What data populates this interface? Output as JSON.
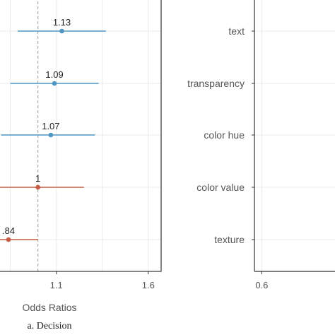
{
  "chart_data": [
    {
      "type": "scatter",
      "subtype": "forest-plot",
      "title": "",
      "xlabel": "Odds Ratios",
      "ylabel": "",
      "caption": "a. Decision",
      "xlim": [
        0.64,
        1.67
      ],
      "x_ticks": [
        1.1,
        1.6
      ],
      "x_tick_labels": [
        "1.1",
        "1.6"
      ],
      "reference_line": 1.0,
      "grid": true,
      "categories": [
        "text",
        "transparency",
        "color hue",
        "color value",
        "texture"
      ],
      "series": [
        {
          "values": [
            {
              "category": "text",
              "estimate": 1.13,
              "label": "1.13",
              "ci": [
                0.89,
                1.37
              ],
              "color": "#4f95c2"
            },
            {
              "category": "transparency",
              "estimate": 1.09,
              "label": "1.09",
              "ci": [
                0.85,
                1.33
              ],
              "color": "#4f95c2"
            },
            {
              "category": "color hue",
              "estimate": 1.07,
              "label": "1.07",
              "ci": [
                0.8,
                1.31
              ],
              "color": "#4f95c2"
            },
            {
              "category": "color value",
              "estimate": 1.0,
              "label": "1",
              "ci": [
                0.75,
                1.25
              ],
              "color": "#c75b44"
            },
            {
              "category": "texture",
              "estimate": 0.84,
              "label": ".84",
              "ci": [
                0.68,
                1.0
              ],
              "color": "#c75b44"
            }
          ]
        }
      ]
    },
    {
      "type": "scatter",
      "subtype": "forest-plot",
      "xlim": [
        0.55,
        1.1
      ],
      "x_ticks": [
        0.6
      ],
      "x_tick_labels": [
        "0.6"
      ],
      "categories": [
        "text",
        "transparency",
        "color hue",
        "color value",
        "texture"
      ],
      "grid": true
    }
  ]
}
